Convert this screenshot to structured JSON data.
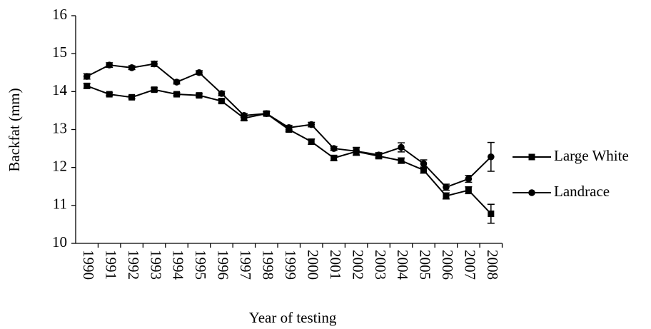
{
  "chart_data": {
    "type": "line",
    "x_label": "Year of testing",
    "y_label": "Backfat (mm)",
    "categories": [
      "1990",
      "1991",
      "1992",
      "1993",
      "1994",
      "1995",
      "1996",
      "1997",
      "1998",
      "1999",
      "2000",
      "2001",
      "2002",
      "2003",
      "2004",
      "2005",
      "2006",
      "2007",
      "2008"
    ],
    "series": [
      {
        "name": "Large White",
        "color": "#000000",
        "marker": "square",
        "values": [
          14.15,
          13.93,
          13.85,
          14.05,
          13.93,
          13.9,
          13.75,
          13.3,
          13.42,
          13.0,
          12.68,
          12.25,
          12.42,
          12.3,
          12.18,
          11.93,
          11.25,
          11.4,
          10.78
        ],
        "errors": [
          0.06,
          0.04,
          0.04,
          0.05,
          0.04,
          0.04,
          0.05,
          0.06,
          0.05,
          0.06,
          0.07,
          0.07,
          0.1,
          0.07,
          0.07,
          0.08,
          0.08,
          0.09,
          0.25
        ]
      },
      {
        "name": "Landrace",
        "color": "#000000",
        "marker": "circle",
        "values": [
          14.4,
          14.7,
          14.63,
          14.73,
          14.25,
          14.5,
          13.95,
          13.37,
          13.42,
          13.05,
          13.13,
          12.5,
          12.43,
          12.33,
          12.53,
          12.1,
          11.48,
          11.7,
          12.28
        ],
        "errors": [
          0.07,
          0.06,
          0.05,
          0.07,
          0.05,
          0.05,
          0.06,
          0.05,
          0.05,
          0.06,
          0.06,
          0.05,
          0.1,
          0.06,
          0.12,
          0.1,
          0.08,
          0.09,
          0.38
        ]
      }
    ],
    "ylim": [
      10,
      16
    ],
    "yticks": [
      10,
      11,
      12,
      13,
      14,
      15,
      16
    ],
    "grid": false,
    "legend": "right"
  }
}
